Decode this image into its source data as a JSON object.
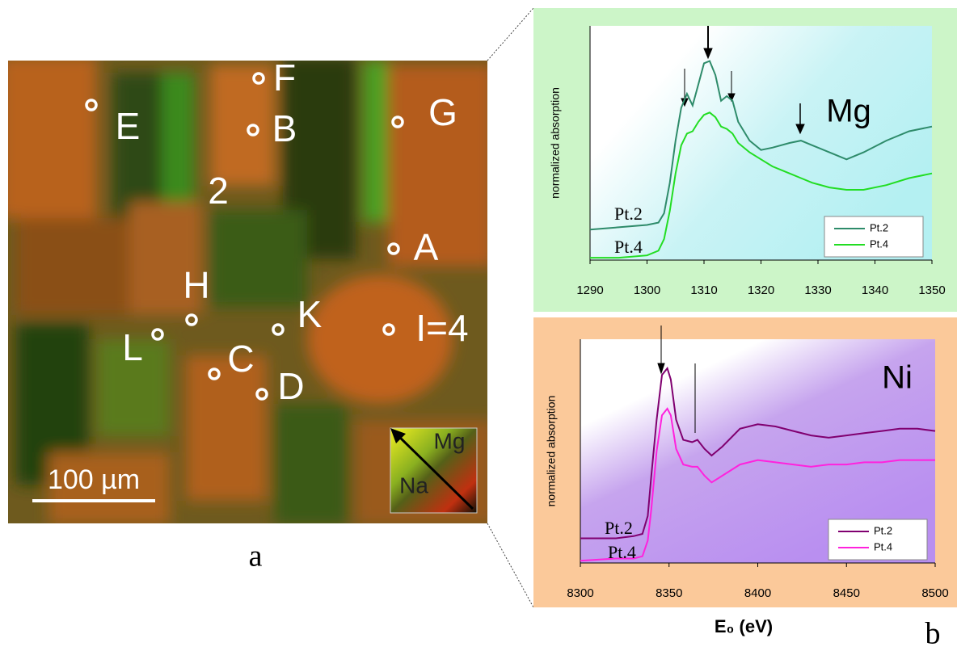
{
  "image": {
    "points": [
      "E",
      "F",
      "B",
      "G",
      "2",
      "A",
      "H",
      "L",
      "K",
      "I=4",
      "C",
      "D"
    ],
    "scale_bar": "100 µm",
    "color_key": [
      "Mg",
      "Na"
    ],
    "panel_label": "a"
  },
  "panel_label": "b",
  "x_label": "E₀ (eV)",
  "chart_data": [
    {
      "type": "line",
      "label": "Mg",
      "y_label": "normalized absorption",
      "x": [
        1290,
        1295,
        1300,
        1302,
        1303,
        1304,
        1305,
        1306,
        1307,
        1308,
        1309,
        1310,
        1311,
        1312,
        1313,
        1314,
        1315,
        1316,
        1318,
        1320,
        1322,
        1325,
        1327,
        1329,
        1332,
        1335,
        1338,
        1342,
        1346,
        1350
      ],
      "xlim": [
        1290,
        1350
      ],
      "xticks": [
        1290,
        1300,
        1310,
        1320,
        1330,
        1340,
        1350
      ],
      "ylim": [
        0,
        1
      ],
      "series": [
        {
          "name": "Pt.2",
          "color": "#2e8b6a",
          "values": [
            0.13,
            0.14,
            0.15,
            0.16,
            0.2,
            0.33,
            0.51,
            0.65,
            0.71,
            0.66,
            0.75,
            0.84,
            0.85,
            0.79,
            0.68,
            0.7,
            0.68,
            0.59,
            0.51,
            0.47,
            0.48,
            0.5,
            0.51,
            0.49,
            0.46,
            0.43,
            0.46,
            0.51,
            0.55,
            0.57
          ]
        },
        {
          "name": "Pt.4",
          "color": "#22dd22",
          "values": [
            0.01,
            0.01,
            0.02,
            0.04,
            0.09,
            0.21,
            0.37,
            0.49,
            0.54,
            0.55,
            0.59,
            0.62,
            0.63,
            0.61,
            0.57,
            0.56,
            0.54,
            0.5,
            0.46,
            0.43,
            0.4,
            0.37,
            0.35,
            0.33,
            0.31,
            0.3,
            0.3,
            0.32,
            0.35,
            0.37
          ]
        }
      ]
    },
    {
      "type": "line",
      "label": "Ni",
      "y_label": "normalized absorption",
      "x": [
        8300,
        8320,
        8330,
        8335,
        8338,
        8340,
        8343,
        8346,
        8349,
        8351,
        8354,
        8358,
        8363,
        8366,
        8370,
        8374,
        8380,
        8390,
        8400,
        8410,
        8420,
        8430,
        8440,
        8450,
        8460,
        8470,
        8480,
        8490,
        8500
      ],
      "xlim": [
        8300,
        8500
      ],
      "xticks": [
        8300,
        8350,
        8400,
        8450,
        8500
      ],
      "ylim": [
        0,
        1
      ],
      "series": [
        {
          "name": "Pt.2",
          "color": "#800070",
          "values": [
            0.11,
            0.11,
            0.12,
            0.13,
            0.21,
            0.39,
            0.64,
            0.84,
            0.87,
            0.82,
            0.64,
            0.55,
            0.54,
            0.55,
            0.51,
            0.48,
            0.52,
            0.6,
            0.62,
            0.61,
            0.59,
            0.57,
            0.56,
            0.57,
            0.58,
            0.59,
            0.6,
            0.6,
            0.59
          ]
        },
        {
          "name": "Pt.4",
          "color": "#ff22dd",
          "values": [
            0.01,
            0.02,
            0.02,
            0.03,
            0.1,
            0.24,
            0.5,
            0.66,
            0.69,
            0.66,
            0.51,
            0.44,
            0.43,
            0.43,
            0.39,
            0.36,
            0.39,
            0.44,
            0.46,
            0.45,
            0.44,
            0.43,
            0.44,
            0.44,
            0.45,
            0.45,
            0.46,
            0.46,
            0.46
          ]
        }
      ]
    }
  ]
}
